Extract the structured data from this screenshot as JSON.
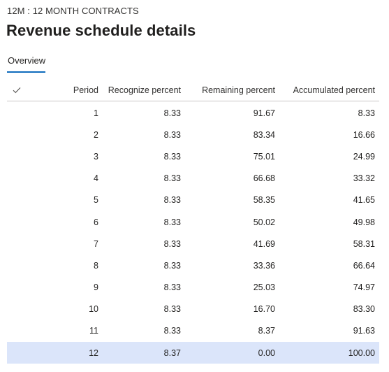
{
  "breadcrumb": "12M : 12 MONTH CONTRACTS",
  "title": "Revenue schedule details",
  "tabs": [
    {
      "label": "Overview",
      "active": true
    }
  ],
  "grid": {
    "columns": {
      "select_icon": "checkmark-icon",
      "period": "Period",
      "recognize": "Recognize percent",
      "remaining": "Remaining percent",
      "accumulated": "Accumulated percent"
    },
    "rows": [
      {
        "period": "1",
        "recognize": "8.33",
        "remaining": "91.67",
        "accumulated": "8.33"
      },
      {
        "period": "2",
        "recognize": "8.33",
        "remaining": "83.34",
        "accumulated": "16.66"
      },
      {
        "period": "3",
        "recognize": "8.33",
        "remaining": "75.01",
        "accumulated": "24.99"
      },
      {
        "period": "4",
        "recognize": "8.33",
        "remaining": "66.68",
        "accumulated": "33.32"
      },
      {
        "period": "5",
        "recognize": "8.33",
        "remaining": "58.35",
        "accumulated": "41.65"
      },
      {
        "period": "6",
        "recognize": "8.33",
        "remaining": "50.02",
        "accumulated": "49.98"
      },
      {
        "period": "7",
        "recognize": "8.33",
        "remaining": "41.69",
        "accumulated": "58.31"
      },
      {
        "period": "8",
        "recognize": "8.33",
        "remaining": "33.36",
        "accumulated": "66.64"
      },
      {
        "period": "9",
        "recognize": "8.33",
        "remaining": "25.03",
        "accumulated": "74.97"
      },
      {
        "period": "10",
        "recognize": "8.33",
        "remaining": "16.70",
        "accumulated": "83.30"
      },
      {
        "period": "11",
        "recognize": "8.33",
        "remaining": "8.37",
        "accumulated": "91.63"
      },
      {
        "period": "12",
        "recognize": "8.37",
        "remaining": "0.00",
        "accumulated": "100.00",
        "selected": true
      }
    ]
  },
  "colors": {
    "tab_underline": "#0f6cbd",
    "selected_row": "#dbe5fa",
    "header_divider": "#c8c6c4"
  }
}
